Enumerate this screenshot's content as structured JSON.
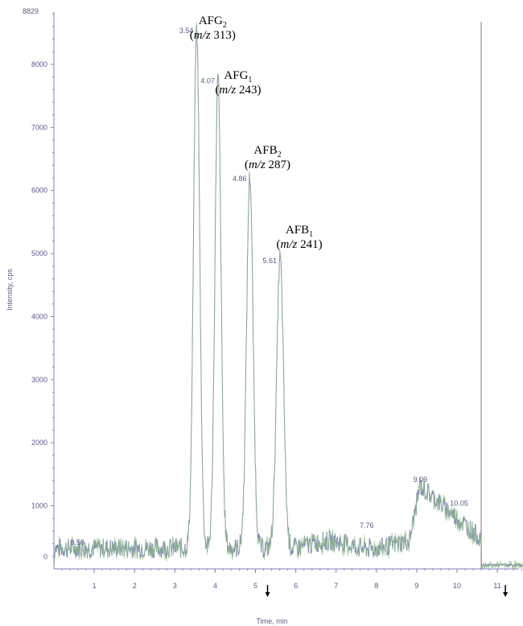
{
  "chart_data": {
    "type": "line",
    "title": "",
    "xlabel": "Time, min",
    "ylabel": "Intensity, cps",
    "xlim": [
      0,
      11.8
    ],
    "ylim": [
      0,
      8829
    ],
    "y_max_label": "8829",
    "x_ticks": [
      "1",
      "2",
      "3",
      "4",
      "5",
      "6",
      "7",
      "8",
      "9",
      "10",
      "11"
    ],
    "y_ticks": [
      "1000",
      "2000",
      "3000",
      "4000",
      "5000",
      "6000",
      "7000",
      "8000"
    ],
    "y_zero_label": "0",
    "cutoff_time": 10.6,
    "series_color": "#7f7fbf",
    "peaks": [
      {
        "rt": 3.54,
        "rt_label": "3.54",
        "height": 8550,
        "width": 0.075
      },
      {
        "rt": 4.07,
        "rt_label": "4.07",
        "height": 7750,
        "width": 0.075
      },
      {
        "rt": 4.86,
        "rt_label": "4.86",
        "height": 6200,
        "width": 0.08
      },
      {
        "rt": 5.61,
        "rt_label": "5.61",
        "height": 4900,
        "width": 0.085
      }
    ],
    "small_labels": [
      {
        "x": 0.58,
        "y": 380,
        "text": "0.58"
      },
      {
        "x": 7.76,
        "y": 650,
        "text": "7.76"
      },
      {
        "x": 9.09,
        "y": 1380,
        "text": "9.09"
      },
      {
        "x": 10.05,
        "y": 1000,
        "text": "10.05"
      }
    ],
    "annotations": [
      {
        "name": "AFG",
        "sub": "2",
        "mz": "313",
        "anchor_rt": 3.54
      },
      {
        "name": "AFG",
        "sub": "1",
        "mz": "243",
        "anchor_rt": 4.07
      },
      {
        "name": "AFB",
        "sub": "2",
        "mz": "287",
        "anchor_rt": 4.86
      },
      {
        "name": "AFB",
        "sub": "1",
        "mz": "241",
        "anchor_rt": 5.61
      }
    ],
    "arrow_times": [
      5.3,
      11.2
    ]
  }
}
